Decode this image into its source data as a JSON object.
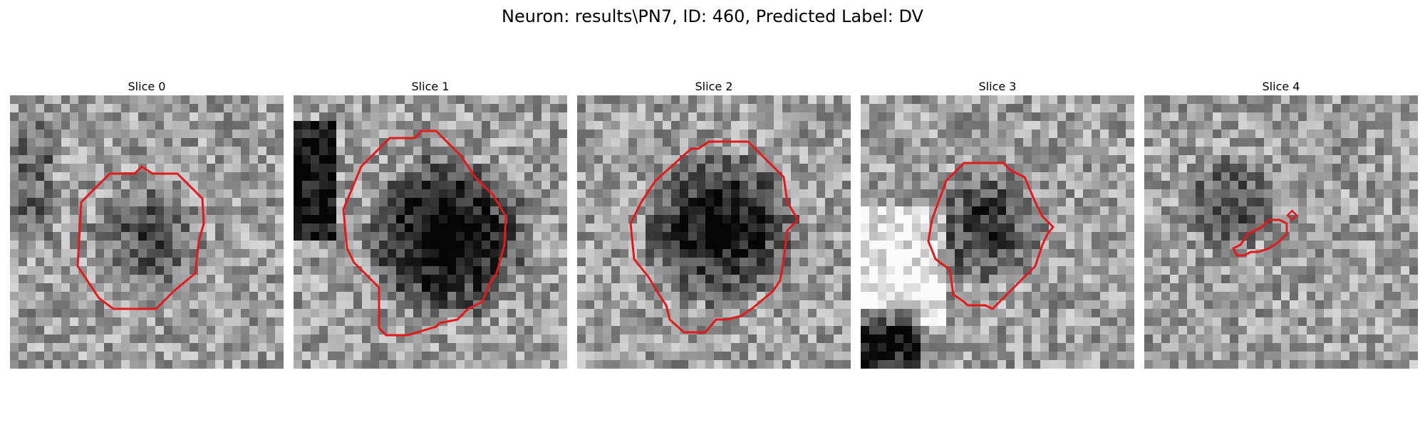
{
  "figure": {
    "title": "Neuron: results\\PN7, ID: 460, Predicted Label: DV",
    "contour_color": "#e31a1c",
    "panels": [
      {
        "title": "Slice 0",
        "roi": "roi-outline"
      },
      {
        "title": "Slice 1",
        "roi": "roi-outline"
      },
      {
        "title": "Slice 2",
        "roi": "roi-outline"
      },
      {
        "title": "Slice 3",
        "roi": "roi-outline"
      },
      {
        "title": "Slice 4",
        "roi": "roi-outline"
      }
    ]
  }
}
